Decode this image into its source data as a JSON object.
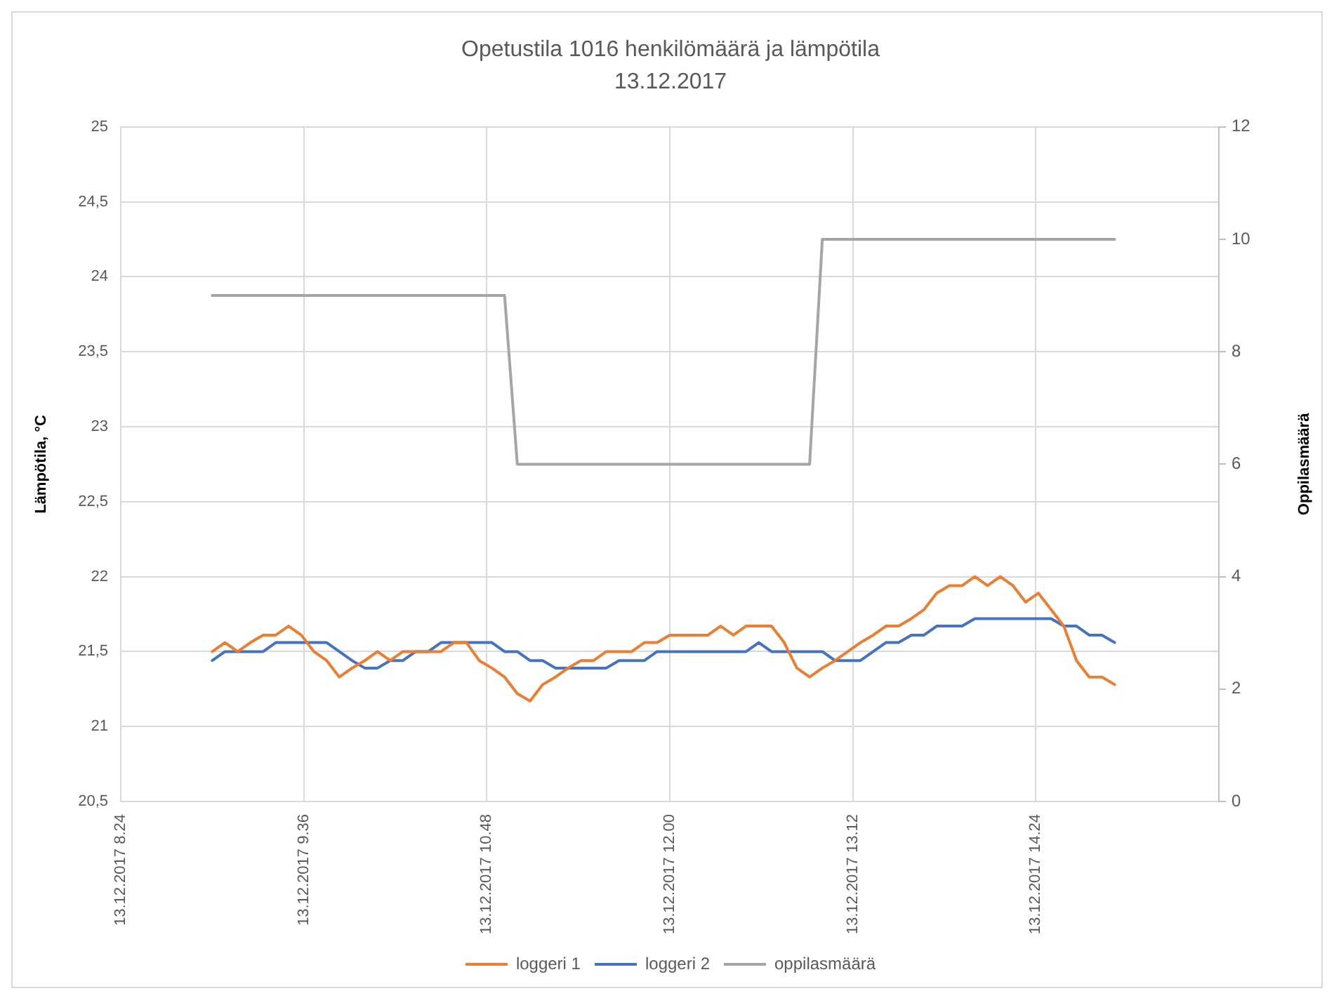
{
  "chart_data": {
    "type": "line",
    "title": "Opetustila 1016 henkilömäärä ja lämpötila",
    "subtitle": "13.12.2017",
    "ylabel": "Lämpötila, °C",
    "y2label": "Oppilasmäärä",
    "x": [
      "2017-12-13T09:00",
      "2017-12-13T09:05",
      "2017-12-13T09:10",
      "2017-12-13T09:15",
      "2017-12-13T09:20",
      "2017-12-13T09:25",
      "2017-12-13T09:30",
      "2017-12-13T09:35",
      "2017-12-13T09:40",
      "2017-12-13T09:45",
      "2017-12-13T09:50",
      "2017-12-13T09:55",
      "2017-12-13T10:00",
      "2017-12-13T10:05",
      "2017-12-13T10:10",
      "2017-12-13T10:15",
      "2017-12-13T10:20",
      "2017-12-13T10:25",
      "2017-12-13T10:30",
      "2017-12-13T10:35",
      "2017-12-13T10:40",
      "2017-12-13T10:45",
      "2017-12-13T10:50",
      "2017-12-13T10:55",
      "2017-12-13T11:00",
      "2017-12-13T11:05",
      "2017-12-13T11:10",
      "2017-12-13T11:15",
      "2017-12-13T11:20",
      "2017-12-13T11:25",
      "2017-12-13T11:30",
      "2017-12-13T11:35",
      "2017-12-13T11:40",
      "2017-12-13T11:45",
      "2017-12-13T11:50",
      "2017-12-13T11:55",
      "2017-12-13T12:00",
      "2017-12-13T12:05",
      "2017-12-13T12:10",
      "2017-12-13T12:15",
      "2017-12-13T12:20",
      "2017-12-13T12:25",
      "2017-12-13T12:30",
      "2017-12-13T12:35",
      "2017-12-13T12:40",
      "2017-12-13T12:45",
      "2017-12-13T12:50",
      "2017-12-13T12:55",
      "2017-12-13T13:00",
      "2017-12-13T13:05",
      "2017-12-13T13:10",
      "2017-12-13T13:15",
      "2017-12-13T13:20",
      "2017-12-13T13:25",
      "2017-12-13T13:30",
      "2017-12-13T13:35",
      "2017-12-13T13:40",
      "2017-12-13T13:45",
      "2017-12-13T13:50",
      "2017-12-13T13:55",
      "2017-12-13T14:00",
      "2017-12-13T14:05",
      "2017-12-13T14:10",
      "2017-12-13T14:15",
      "2017-12-13T14:20",
      "2017-12-13T14:25",
      "2017-12-13T14:30",
      "2017-12-13T14:35",
      "2017-12-13T14:40",
      "2017-12-13T14:45",
      "2017-12-13T14:50",
      "2017-12-13T14:55"
    ],
    "xlim": [
      "2017-12-13T08:24",
      "2017-12-13T15:36"
    ],
    "xticks": [
      {
        "value": "2017-12-13T08:24",
        "label": "13.12.2017 8.24"
      },
      {
        "value": "2017-12-13T09:36",
        "label": "13.12.2017 9.36"
      },
      {
        "value": "2017-12-13T10:48",
        "label": "13.12.2017 10.48"
      },
      {
        "value": "2017-12-13T12:00",
        "label": "13.12.2017 12.00"
      },
      {
        "value": "2017-12-13T13:12",
        "label": "13.12.2017 13.12"
      },
      {
        "value": "2017-12-13T14:24",
        "label": "13.12.2017 14.24"
      }
    ],
    "ylim": [
      20.5,
      25
    ],
    "yticks": [
      {
        "value": 20.5,
        "label": "20,5"
      },
      21,
      {
        "value": 21.5,
        "label": "21,5"
      },
      22,
      {
        "value": 22.5,
        "label": "22,5"
      },
      23,
      {
        "value": 23.5,
        "label": "23,5"
      },
      24,
      {
        "value": 24.5,
        "label": "24,5"
      },
      25
    ],
    "y2lim": [
      0,
      12
    ],
    "y2ticks": [
      0,
      2,
      4,
      6,
      8,
      10,
      12
    ],
    "grid": true,
    "legend": "bottom",
    "marker": "none",
    "series": [
      {
        "name": "loggeri 1",
        "color": "#ed7d31",
        "values": [
          21.5,
          21.56,
          21.5,
          21.56,
          21.61,
          21.61,
          21.67,
          21.61,
          21.5,
          21.44,
          21.33,
          21.39,
          21.44,
          21.5,
          21.44,
          21.5,
          21.5,
          21.5,
          21.5,
          21.56,
          21.56,
          21.44,
          21.39,
          21.33,
          21.22,
          21.17,
          21.28,
          21.33,
          21.39,
          21.44,
          21.44,
          21.5,
          21.5,
          21.5,
          21.56,
          21.56,
          21.61,
          21.61,
          21.61,
          21.61,
          21.67,
          21.61,
          21.67,
          21.67,
          21.67,
          21.56,
          21.39,
          21.33,
          21.39,
          21.44,
          21.5,
          21.56,
          21.61,
          21.67,
          21.67,
          21.72,
          21.78,
          21.89,
          21.94,
          21.94,
          22,
          21.94,
          22,
          21.94,
          21.83,
          21.89,
          21.78,
          21.67,
          21.44,
          21.33,
          21.33,
          21.28
        ]
      },
      {
        "name": "loggeri 2",
        "color": "#4472c4",
        "values": [
          21.44,
          21.5,
          21.5,
          21.5,
          21.5,
          21.56,
          21.56,
          21.56,
          21.56,
          21.56,
          21.5,
          21.44,
          21.39,
          21.39,
          21.44,
          21.44,
          21.5,
          21.5,
          21.56,
          21.56,
          21.56,
          21.56,
          21.56,
          21.5,
          21.5,
          21.44,
          21.44,
          21.39,
          21.39,
          21.39,
          21.39,
          21.39,
          21.44,
          21.44,
          21.44,
          21.5,
          21.5,
          21.5,
          21.5,
          21.5,
          21.5,
          21.5,
          21.5,
          21.56,
          21.5,
          21.5,
          21.5,
          21.5,
          21.5,
          21.44,
          21.44,
          21.44,
          21.5,
          21.56,
          21.56,
          21.61,
          21.61,
          21.67,
          21.67,
          21.67,
          21.72,
          21.72,
          21.72,
          21.72,
          21.72,
          21.72,
          21.72,
          21.67,
          21.67,
          21.61,
          21.61,
          21.56
        ]
      },
      {
        "name": "oppilasmäärä",
        "color": "#a5a5a5",
        "axis": "y2",
        "values": [
          9,
          9,
          9,
          9,
          9,
          9,
          9,
          9,
          9,
          9,
          9,
          9,
          9,
          9,
          9,
          9,
          9,
          9,
          9,
          9,
          9,
          9,
          9,
          9,
          6,
          6,
          6,
          6,
          6,
          6,
          6,
          6,
          6,
          6,
          6,
          6,
          6,
          6,
          6,
          6,
          6,
          6,
          6,
          6,
          6,
          6,
          6,
          6,
          10,
          10,
          10,
          10,
          10,
          10,
          10,
          10,
          10,
          10,
          10,
          10,
          10,
          10,
          10,
          10,
          10,
          10,
          10,
          10,
          10,
          10,
          10,
          10
        ]
      }
    ]
  }
}
